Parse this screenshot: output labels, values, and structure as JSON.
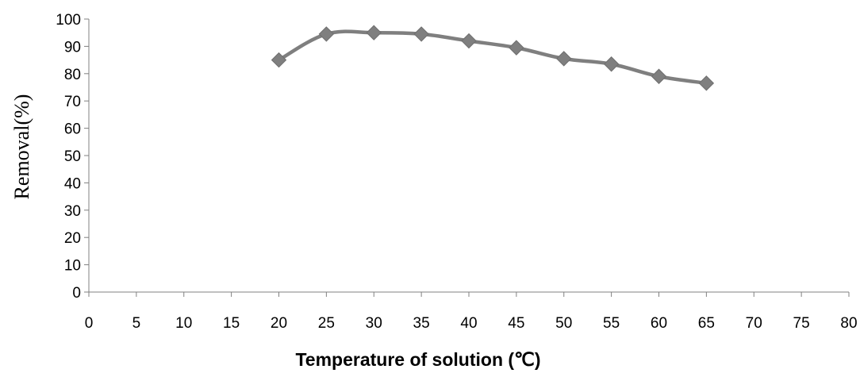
{
  "chart_data": {
    "type": "line",
    "title": "",
    "xlabel": "Temperature of solution (℃)",
    "ylabel": "Removal(%)",
    "xlim": [
      0,
      80
    ],
    "ylim": [
      0,
      100
    ],
    "x_ticks": [
      "0",
      "5",
      "10",
      "15",
      "20",
      "25",
      "30",
      "35",
      "40",
      "45",
      "50",
      "55",
      "60",
      "65",
      "70",
      "75",
      "80"
    ],
    "y_ticks": [
      "0",
      "10",
      "20",
      "30",
      "40",
      "50",
      "60",
      "70",
      "80",
      "90",
      "100"
    ],
    "grid": false,
    "legend": "none",
    "series": [
      {
        "x": [
          20,
          25,
          30,
          35,
          40,
          45,
          50,
          55,
          60,
          65
        ],
        "y": [
          85,
          94.5,
          95,
          94.5,
          92,
          89.5,
          85.5,
          83.5,
          79,
          76.5
        ],
        "color": "#7f7f7f",
        "marker": "diamond"
      }
    ]
  }
}
